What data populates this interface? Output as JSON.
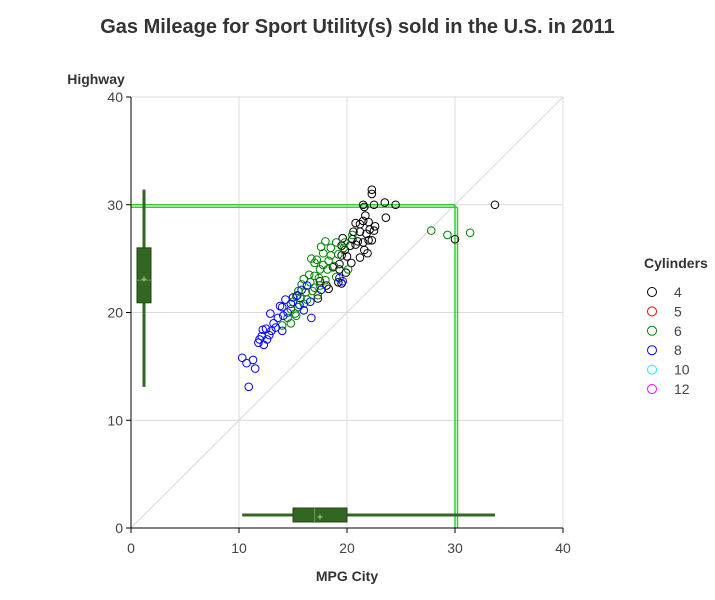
{
  "chart_data": {
    "type": "scatter",
    "title": "Gas Mileage for Sport Utility(s) sold in the U.S. in 2011",
    "xlabel": "MPG City",
    "ylabel": "Highway",
    "xlim": [
      0,
      40
    ],
    "ylim": [
      0,
      40
    ],
    "x_ticks": [
      "0",
      "10",
      "20",
      "30",
      "40"
    ],
    "y_ticks": [
      "0",
      "10",
      "20",
      "30",
      "40"
    ],
    "grid": true,
    "diagonal_reference_line": true,
    "reference_lines": {
      "x": 30,
      "y": 30,
      "color": "#33cc33"
    },
    "legend": {
      "title": "Cylinders",
      "placement": "right",
      "items": [
        {
          "label": "4",
          "color": "#000000"
        },
        {
          "label": "5",
          "color": "#ff0000"
        },
        {
          "label": "6",
          "color": "#008000"
        },
        {
          "label": "8",
          "color": "#0000ff"
        },
        {
          "label": "10",
          "color": "#00ffff"
        },
        {
          "label": "12",
          "color": "#ff00ff"
        }
      ]
    },
    "boxplot_x": {
      "min": 10.3,
      "q1": 15.0,
      "median": 17.0,
      "mean": 17.5,
      "q3": 20.0,
      "max": 33.7,
      "color": "#336622"
    },
    "boxplot_y": {
      "min": 13.1,
      "q1": 20.9,
      "median": 23.0,
      "mean": 23.1,
      "q3": 26.0,
      "max": 31.4,
      "color": "#336622"
    },
    "series": [
      {
        "name": "4",
        "color": "#000000",
        "points": [
          [
            22.3,
            31.4
          ],
          [
            22.3,
            31.0
          ],
          [
            21.5,
            30.0
          ],
          [
            21.6,
            29.8
          ],
          [
            23.5,
            30.2
          ],
          [
            24.5,
            30.0
          ],
          [
            22.5,
            30.0
          ],
          [
            33.7,
            30.0
          ],
          [
            30.0,
            26.8
          ],
          [
            23.6,
            28.8
          ],
          [
            22.0,
            28.4
          ],
          [
            22.6,
            28.0
          ],
          [
            22.1,
            27.7
          ],
          [
            21.7,
            29.0
          ],
          [
            21.5,
            28.5
          ],
          [
            20.8,
            28.3
          ],
          [
            21.2,
            28.2
          ],
          [
            20.6,
            27.5
          ],
          [
            21.2,
            27.5
          ],
          [
            21.8,
            27.3
          ],
          [
            22.5,
            27.6
          ],
          [
            20.5,
            26.8
          ],
          [
            21.0,
            26.6
          ],
          [
            20.8,
            26.3
          ],
          [
            21.5,
            26.5
          ],
          [
            22.0,
            26.7
          ],
          [
            22.3,
            26.7
          ],
          [
            19.5,
            26.2
          ],
          [
            19.8,
            25.8
          ],
          [
            20.3,
            26.2
          ],
          [
            21.6,
            25.8
          ],
          [
            19.5,
            25.3
          ],
          [
            20.0,
            25.2
          ],
          [
            21.2,
            25.1
          ],
          [
            19.3,
            24.5
          ],
          [
            20.4,
            24.6
          ],
          [
            19.3,
            24.0
          ],
          [
            19.9,
            23.7
          ],
          [
            19.2,
            22.8
          ],
          [
            19.5,
            22.7
          ],
          [
            18.1,
            22.5
          ],
          [
            18.3,
            22.2
          ],
          [
            17.3,
            21.3
          ],
          [
            19.6,
            26.9
          ],
          [
            18.7,
            24.2
          ],
          [
            17.5,
            22.9
          ],
          [
            21.9,
            25.5
          ]
        ]
      },
      {
        "name": "6",
        "color": "#008000",
        "points": [
          [
            27.8,
            27.6
          ],
          [
            29.3,
            27.2
          ],
          [
            31.4,
            27.4
          ],
          [
            20.5,
            27.2
          ],
          [
            19.8,
            26.5
          ],
          [
            19.7,
            26.0
          ],
          [
            19.0,
            26.5
          ],
          [
            18.5,
            26.0
          ],
          [
            18.0,
            26.6
          ],
          [
            17.6,
            26.1
          ],
          [
            17.8,
            25.5
          ],
          [
            18.5,
            25.3
          ],
          [
            19.2,
            25.4
          ],
          [
            18.3,
            24.8
          ],
          [
            17.0,
            24.6
          ],
          [
            17.8,
            24.4
          ],
          [
            17.5,
            24.0
          ],
          [
            18.2,
            24.0
          ],
          [
            18.8,
            24.3
          ],
          [
            16.5,
            23.5
          ],
          [
            17.0,
            23.4
          ],
          [
            17.4,
            23.2
          ],
          [
            16.0,
            23.1
          ],
          [
            16.6,
            22.8
          ],
          [
            17.0,
            22.3
          ],
          [
            17.5,
            22.5
          ],
          [
            15.8,
            22.6
          ],
          [
            15.5,
            22.0
          ],
          [
            16.2,
            21.9
          ],
          [
            16.8,
            22.0
          ],
          [
            15.3,
            21.5
          ],
          [
            15.7,
            21.3
          ],
          [
            16.3,
            21.2
          ],
          [
            15.0,
            21.0
          ],
          [
            15.5,
            20.5
          ],
          [
            16.0,
            20.8
          ],
          [
            14.8,
            20.3
          ],
          [
            15.2,
            19.9
          ],
          [
            14.5,
            19.5
          ],
          [
            15.3,
            19.7
          ],
          [
            14.8,
            19.0
          ],
          [
            14.0,
            18.8
          ],
          [
            16.7,
            25.0
          ],
          [
            17.2,
            24.9
          ],
          [
            20.1,
            24.0
          ],
          [
            19.0,
            23.3
          ],
          [
            18.0,
            23.0
          ],
          [
            17.3,
            21.6
          ]
        ]
      },
      {
        "name": "8",
        "color": "#0000ff",
        "points": [
          [
            10.3,
            15.8
          ],
          [
            10.7,
            15.3
          ],
          [
            11.3,
            15.6
          ],
          [
            11.5,
            14.8
          ],
          [
            10.9,
            13.1
          ],
          [
            11.8,
            17.2
          ],
          [
            12.3,
            17.0
          ],
          [
            12.6,
            17.5
          ],
          [
            12.1,
            17.8
          ],
          [
            12.8,
            17.9
          ],
          [
            13.0,
            18.3
          ],
          [
            12.5,
            18.5
          ],
          [
            13.4,
            18.6
          ],
          [
            14.0,
            18.3
          ],
          [
            13.2,
            19.0
          ],
          [
            13.6,
            19.5
          ],
          [
            14.1,
            19.7
          ],
          [
            12.9,
            19.9
          ],
          [
            14.5,
            20.0
          ],
          [
            14.0,
            20.5
          ],
          [
            14.8,
            20.8
          ],
          [
            14.3,
            21.2
          ],
          [
            15.0,
            21.4
          ],
          [
            15.4,
            21.6
          ],
          [
            15.8,
            22.1
          ],
          [
            16.3,
            22.5
          ],
          [
            15.6,
            20.7
          ],
          [
            16.0,
            20.2
          ],
          [
            16.6,
            21.0
          ],
          [
            13.8,
            20.6
          ],
          [
            12.2,
            18.4
          ],
          [
            11.9,
            17.5
          ],
          [
            16.7,
            19.5
          ],
          [
            19.3,
            23.2
          ],
          [
            19.6,
            22.9
          ],
          [
            17.6,
            22.1
          ]
        ]
      }
    ]
  }
}
